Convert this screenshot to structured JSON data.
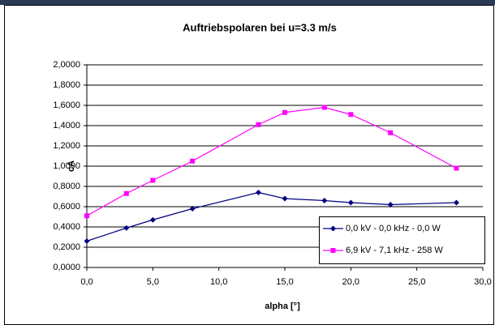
{
  "chart_data": {
    "type": "line",
    "title": "Auftriebspolaren bei u=3.3 m/s",
    "x_label": "alpha [°]",
    "y_label": "cA",
    "series": [
      {
        "name": "0,0 kV - 0,0 kHz - 0,0 W",
        "color": "#000080",
        "marker": "diamond",
        "x": [
          0,
          3,
          5,
          8,
          13,
          15,
          18,
          20,
          23,
          28
        ],
        "values": [
          0.26,
          0.39,
          0.47,
          0.58,
          0.74,
          0.68,
          0.66,
          0.64,
          0.62,
          0.64
        ]
      },
      {
        "name": "6,9 kV - 7,1 kHz - 258 W",
        "color": "#ff00ff",
        "marker": "square",
        "x": [
          0,
          3,
          5,
          8,
          13,
          15,
          18,
          20,
          23,
          28
        ],
        "values": [
          0.51,
          0.73,
          0.86,
          1.05,
          1.41,
          1.53,
          1.58,
          1.51,
          1.33,
          0.98
        ]
      }
    ],
    "xlim": [
      0,
      30
    ],
    "xticks": [
      {
        "value": 0,
        "label": "0,0"
      },
      {
        "value": 5,
        "label": "5,0"
      },
      {
        "value": 10,
        "label": "10,0"
      },
      {
        "value": 15,
        "label": "15,0"
      },
      {
        "value": 20,
        "label": "20,0"
      },
      {
        "value": 25,
        "label": "25,0"
      },
      {
        "value": 30,
        "label": "30,0"
      }
    ],
    "ylim": [
      0,
      2
    ],
    "yticks": [
      {
        "value": 0,
        "label": "0,0000"
      },
      {
        "value": 0.2,
        "label": "0,2000"
      },
      {
        "value": 0.4,
        "label": "0,4000"
      },
      {
        "value": 0.6,
        "label": "0,6000"
      },
      {
        "value": 0.8,
        "label": "0,8000"
      },
      {
        "value": 1,
        "label": "1,0000"
      },
      {
        "value": 1.2,
        "label": "1,2000"
      },
      {
        "value": 1.4,
        "label": "1,4000"
      },
      {
        "value": 1.6,
        "label": "1,6000"
      },
      {
        "value": 1.8,
        "label": "1,8000"
      },
      {
        "value": 2,
        "label": "2,0000"
      }
    ],
    "grid": true,
    "legend": "right"
  }
}
